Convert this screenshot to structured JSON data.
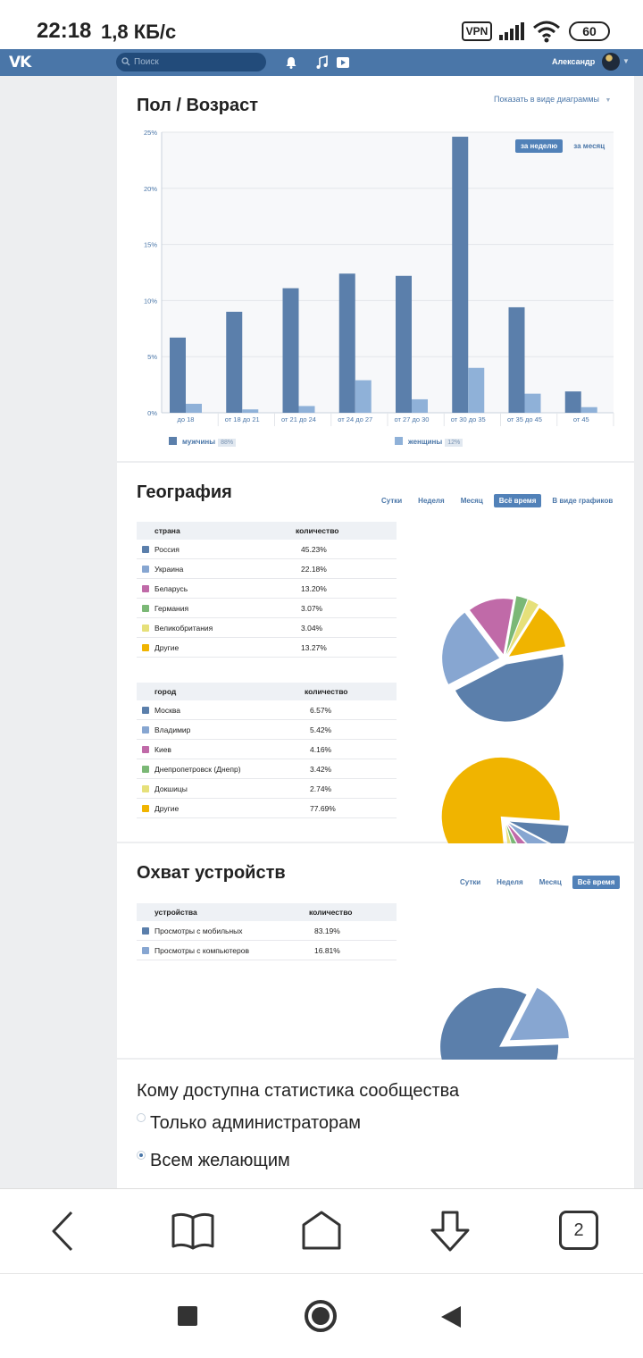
{
  "status_bar": {
    "time": "22:18",
    "speed": "1,8 КБ/с",
    "vpn": "VPN",
    "battery": "60"
  },
  "header": {
    "logo": "VK",
    "search_placeholder": "Поиск",
    "user_name": "Александр"
  },
  "gender_age": {
    "title": "Пол / Возраст",
    "view_link": "Показать в виде диаграммы",
    "period_tabs": [
      {
        "label": "за неделю",
        "active": true
      },
      {
        "label": "за месяц",
        "active": false
      }
    ],
    "legend": [
      {
        "label": "мужчины",
        "pct": "88%",
        "color": "#5b7fab"
      },
      {
        "label": "женщины",
        "pct": "12%",
        "color": "#8fb1d8"
      }
    ],
    "chart_data": {
      "type": "bar",
      "categories": [
        "до 18",
        "от 18 до 21",
        "от 21 до 24",
        "от 24 до 27",
        "от 27 до 30",
        "от 30 до 35",
        "от 35 до 45",
        "от 45"
      ],
      "series": [
        {
          "name": "мужчины",
          "values": [
            6.7,
            9.0,
            11.1,
            12.4,
            12.2,
            24.6,
            9.4,
            1.9
          ]
        },
        {
          "name": "женщины",
          "values": [
            0.8,
            0.3,
            0.6,
            2.9,
            1.2,
            4.0,
            1.7,
            0.5
          ]
        }
      ],
      "yticks": [
        "0%",
        "5%",
        "10%",
        "15%",
        "20%",
        "25%"
      ],
      "ylim": [
        0,
        25
      ],
      "grid": true,
      "legend_position": "bottom"
    }
  },
  "geography": {
    "title": "География",
    "tabs": [
      {
        "label": "Сутки",
        "active": false
      },
      {
        "label": "Неделя",
        "active": false
      },
      {
        "label": "Месяц",
        "active": false
      },
      {
        "label": "Всё время",
        "active": true
      },
      {
        "label": "В виде графиков",
        "active": false
      }
    ],
    "countries": {
      "header": {
        "name": "страна",
        "value": "количество"
      },
      "rows": [
        {
          "name": "Россия",
          "value": "45.23%",
          "pct": 45.23,
          "color": "#5b7fab"
        },
        {
          "name": "Украина",
          "value": "22.18%",
          "pct": 22.18,
          "color": "#87a6d1"
        },
        {
          "name": "Беларусь",
          "value": "13.20%",
          "pct": 13.2,
          "color": "#c06aa8"
        },
        {
          "name": "Германия",
          "value": "3.07%",
          "pct": 3.07,
          "color": "#7bb876"
        },
        {
          "name": "Великобритания",
          "value": "3.04%",
          "pct": 3.04,
          "color": "#e6e07a"
        },
        {
          "name": "Другие",
          "value": "13.27%",
          "pct": 13.27,
          "color": "#f0b400"
        }
      ]
    },
    "cities": {
      "header": {
        "name": "город",
        "value": "количество"
      },
      "rows": [
        {
          "name": "Москва",
          "value": "6.57%",
          "pct": 6.57,
          "color": "#5b7fab"
        },
        {
          "name": "Владимир",
          "value": "5.42%",
          "pct": 5.42,
          "color": "#87a6d1"
        },
        {
          "name": "Киев",
          "value": "4.16%",
          "pct": 4.16,
          "color": "#c06aa8"
        },
        {
          "name": "Днепропетровск (Днепр)",
          "value": "3.42%",
          "pct": 3.42,
          "color": "#7bb876"
        },
        {
          "name": "Докшицы",
          "value": "2.74%",
          "pct": 2.74,
          "color": "#e6e07a"
        },
        {
          "name": "Другие",
          "value": "77.69%",
          "pct": 77.69,
          "color": "#f0b400"
        }
      ]
    }
  },
  "devices": {
    "title": "Охват устройств",
    "tabs": [
      {
        "label": "Сутки",
        "active": false
      },
      {
        "label": "Неделя",
        "active": false
      },
      {
        "label": "Месяц",
        "active": false
      },
      {
        "label": "Всё время",
        "active": true
      }
    ],
    "header": {
      "name": "устройства",
      "value": "количество"
    },
    "rows": [
      {
        "name": "Просмотры с мобильных",
        "value": "83.19%",
        "pct": 83.19,
        "color": "#5b7fab"
      },
      {
        "name": "Просмотры с компьютеров",
        "value": "16.81%",
        "pct": 16.81,
        "color": "#87a6d1"
      }
    ]
  },
  "access": {
    "title": "Кому доступна статистика сообщества",
    "options": [
      {
        "label": "Только администраторам",
        "selected": false
      },
      {
        "label": "Всем желающим",
        "selected": true
      }
    ]
  },
  "browser_nav": {
    "tabs_count": "2"
  }
}
